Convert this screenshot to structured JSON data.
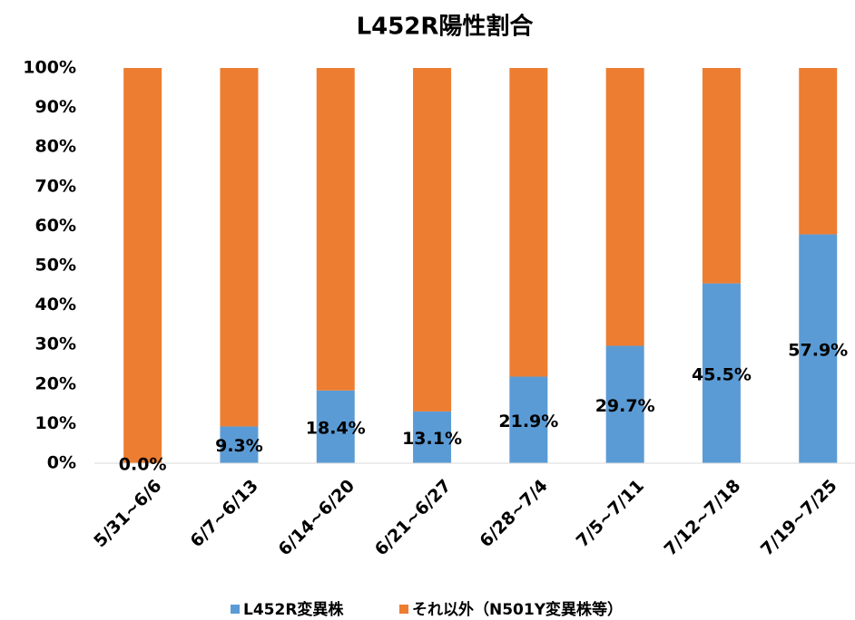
{
  "chart_data": {
    "type": "stacked_bar",
    "title": "L452R陽性割合",
    "categories": [
      "5/31~6/6",
      "6/7~6/13",
      "6/14~6/20",
      "6/21~6/27",
      "6/28~7/4",
      "7/5~7/11",
      "7/12~7/18",
      "7/19~7/25"
    ],
    "series": [
      {
        "name": "L452R変異株",
        "color": "#5b9bd5",
        "values": [
          0.0,
          9.3,
          18.4,
          13.1,
          21.9,
          29.7,
          45.5,
          57.9
        ],
        "value_labels": [
          "0.0%",
          "9.3%",
          "18.4%",
          "13.1%",
          "21.9%",
          "29.7%",
          "45.5%",
          "57.9%"
        ]
      },
      {
        "name": "それ以外（N501Y変異株等）",
        "color": "#ed7d31",
        "values": [
          100.0,
          90.7,
          81.6,
          86.9,
          78.1,
          70.3,
          54.5,
          42.1
        ]
      }
    ],
    "ylim": [
      0,
      100
    ],
    "yticks": [
      {
        "value": 0,
        "label": "0%"
      },
      {
        "value": 10,
        "label": "10%"
      },
      {
        "value": 20,
        "label": "20%"
      },
      {
        "value": 30,
        "label": "30%"
      },
      {
        "value": 40,
        "label": "40%"
      },
      {
        "value": 50,
        "label": "50%"
      },
      {
        "value": 60,
        "label": "60%"
      },
      {
        "value": 70,
        "label": "70%"
      },
      {
        "value": 80,
        "label": "80%"
      },
      {
        "value": 90,
        "label": "90%"
      },
      {
        "value": 100,
        "label": "100%"
      }
    ],
    "legend": "bottom"
  }
}
